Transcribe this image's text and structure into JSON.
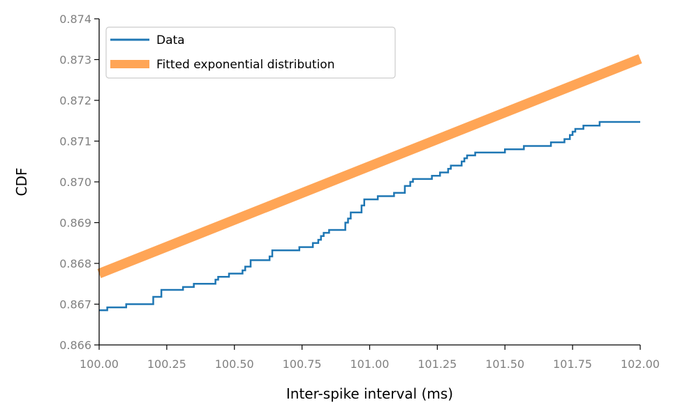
{
  "chart_data": {
    "type": "line",
    "title": "",
    "xlabel": "Inter-spike interval (ms)",
    "ylabel": "CDF",
    "xlim": [
      100.0,
      102.0
    ],
    "ylim": [
      0.866,
      0.874
    ],
    "x_ticks": [
      "100.00",
      "100.25",
      "100.50",
      "100.75",
      "101.00",
      "101.25",
      "101.50",
      "101.75",
      "102.00"
    ],
    "y_ticks": [
      "0.866",
      "0.867",
      "0.868",
      "0.869",
      "0.870",
      "0.871",
      "0.872",
      "0.873",
      "0.874"
    ],
    "grid": false,
    "legend_position": "upper-left",
    "series": [
      {
        "name": "Data",
        "style": "step",
        "color": "#1f77b4",
        "points": [
          [
            100.0,
            0.86685
          ],
          [
            100.03,
            0.86692
          ],
          [
            100.1,
            0.867
          ],
          [
            100.2,
            0.86718
          ],
          [
            100.23,
            0.86735
          ],
          [
            100.31,
            0.86742
          ],
          [
            100.35,
            0.8675
          ],
          [
            100.43,
            0.8676
          ],
          [
            100.44,
            0.86767
          ],
          [
            100.48,
            0.86775
          ],
          [
            100.53,
            0.86783
          ],
          [
            100.54,
            0.86792
          ],
          [
            100.56,
            0.86808
          ],
          [
            100.63,
            0.86817
          ],
          [
            100.64,
            0.86832
          ],
          [
            100.74,
            0.8684
          ],
          [
            100.79,
            0.8685
          ],
          [
            100.81,
            0.86858
          ],
          [
            100.82,
            0.86867
          ],
          [
            100.83,
            0.86875
          ],
          [
            100.85,
            0.86882
          ],
          [
            100.91,
            0.869
          ],
          [
            100.92,
            0.8691
          ],
          [
            100.93,
            0.86925
          ],
          [
            100.97,
            0.86942
          ],
          [
            100.98,
            0.86957
          ],
          [
            101.03,
            0.86965
          ],
          [
            101.09,
            0.86973
          ],
          [
            101.13,
            0.8699
          ],
          [
            101.15,
            0.87
          ],
          [
            101.16,
            0.87007
          ],
          [
            101.23,
            0.87015
          ],
          [
            101.26,
            0.87023
          ],
          [
            101.29,
            0.87032
          ],
          [
            101.3,
            0.8704
          ],
          [
            101.34,
            0.8705
          ],
          [
            101.35,
            0.87058
          ],
          [
            101.36,
            0.87065
          ],
          [
            101.39,
            0.87072
          ],
          [
            101.5,
            0.8708
          ],
          [
            101.57,
            0.87088
          ],
          [
            101.67,
            0.87097
          ],
          [
            101.72,
            0.87105
          ],
          [
            101.74,
            0.87115
          ],
          [
            101.75,
            0.87123
          ],
          [
            101.76,
            0.8713
          ],
          [
            101.79,
            0.87138
          ],
          [
            101.85,
            0.87147
          ],
          [
            102.0,
            0.87147
          ]
        ]
      },
      {
        "name": "Fitted exponential distribution",
        "style": "line",
        "color": "#ffa556",
        "points": [
          [
            100.0,
            0.86775
          ],
          [
            102.0,
            0.87302
          ]
        ]
      }
    ]
  }
}
